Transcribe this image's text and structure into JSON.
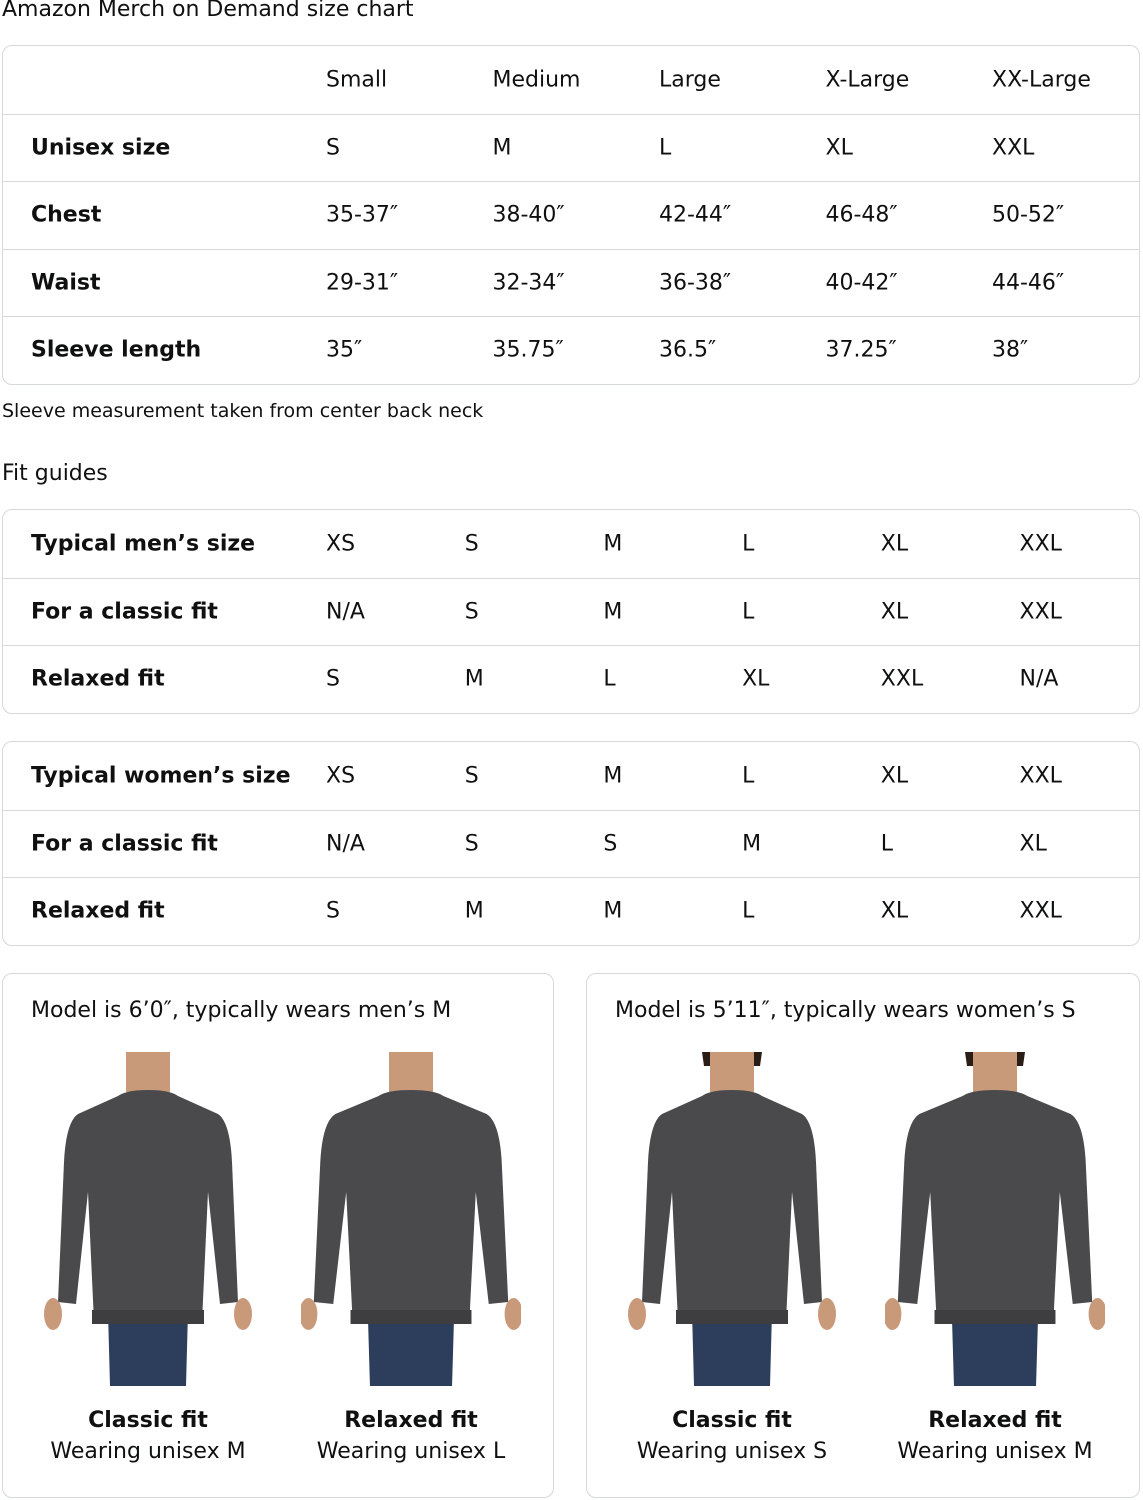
{
  "title": "Amazon Merch on Demand size chart",
  "size_chart": {
    "columns": [
      "Small",
      "Medium",
      "Large",
      "X-Large",
      "XX-Large"
    ],
    "rows": [
      {
        "label": "Unisex size",
        "values": [
          "S",
          "M",
          "L",
          "XL",
          "XXL"
        ]
      },
      {
        "label": "Chest",
        "values": [
          "35-37″",
          "38-40″",
          "42-44″",
          "46-48″",
          "50-52″"
        ]
      },
      {
        "label": "Waist",
        "values": [
          "29-31″",
          "32-34″",
          "36-38″",
          "40-42″",
          "44-46″"
        ]
      },
      {
        "label": "Sleeve length",
        "values": [
          "35″",
          "35.75″",
          "36.5″",
          "37.25″",
          "38″"
        ]
      }
    ]
  },
  "note": "Sleeve measurement taken from center back neck",
  "fit_title": "Fit guides",
  "mens_fit": [
    {
      "label": "Typical men’s size",
      "values": [
        "XS",
        "S",
        "M",
        "L",
        "XL",
        "XXL"
      ]
    },
    {
      "label": "For a classic fit",
      "values": [
        "N/A",
        "S",
        "M",
        "L",
        "XL",
        "XXL"
      ]
    },
    {
      "label": "Relaxed fit",
      "values": [
        "S",
        "M",
        "L",
        "XL",
        "XXL",
        "N/A"
      ]
    }
  ],
  "womens_fit": [
    {
      "label": "Typical women’s size",
      "values": [
        "XS",
        "S",
        "M",
        "L",
        "XL",
        "XXL"
      ]
    },
    {
      "label": "For a classic fit",
      "values": [
        "N/A",
        "S",
        "S",
        "M",
        "L",
        "XL"
      ]
    },
    {
      "label": "Relaxed fit",
      "values": [
        "S",
        "M",
        "M",
        "L",
        "XL",
        "XXL"
      ]
    }
  ],
  "models": [
    {
      "title": "Model is 6’0″, typically wears men’s M",
      "figures": [
        {
          "fit": "Classic fit",
          "wearing": "Wearing unisex M"
        },
        {
          "fit": "Relaxed fit",
          "wearing": "Wearing unisex L"
        }
      ]
    },
    {
      "title": "Model is 5’11″, typically wears women’s S",
      "figures": [
        {
          "fit": "Classic fit",
          "wearing": "Wearing unisex S"
        },
        {
          "fit": "Relaxed fit",
          "wearing": "Wearing unisex M"
        }
      ]
    }
  ],
  "colors": {
    "border": "#d5d9d9",
    "sweater": "#4a4a4c",
    "jeans": "#2c3e5c"
  }
}
